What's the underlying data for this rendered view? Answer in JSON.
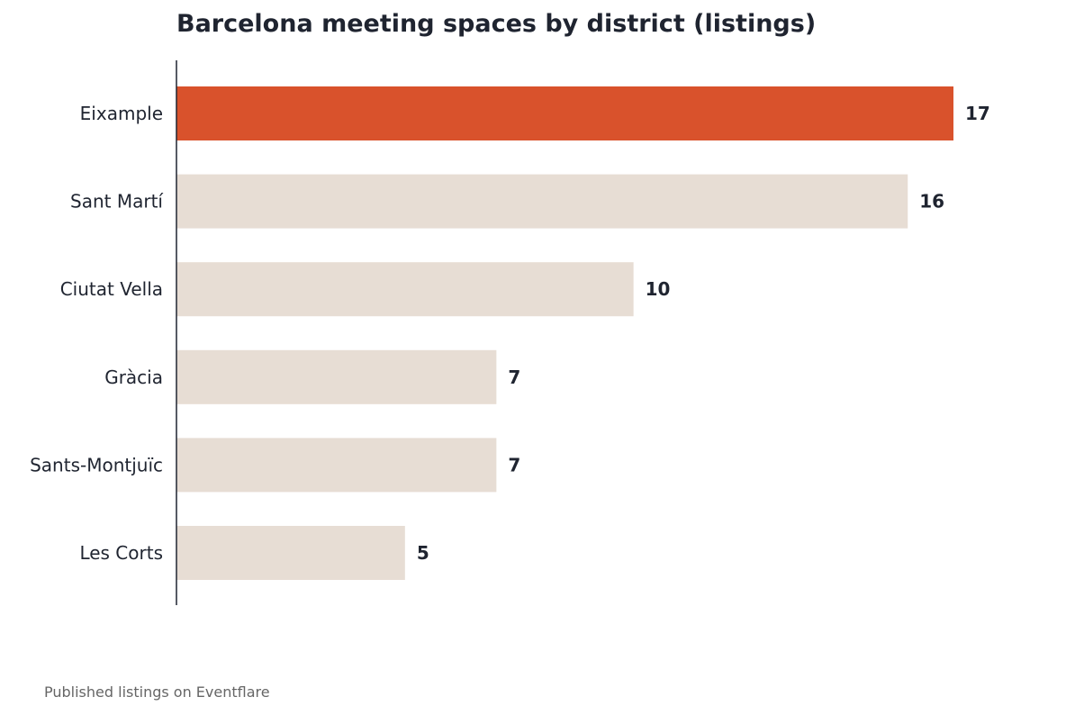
{
  "title": "Barcelona meeting spaces by district (listings)",
  "footnote": "Published listings on Eventflare",
  "colors": {
    "highlight": "#d9522c",
    "bar": "#e7ddd4",
    "axis": "#1f2430",
    "text": "#1f2430"
  },
  "chart_data": {
    "type": "bar",
    "orientation": "horizontal",
    "title": "Barcelona meeting spaces by district (listings)",
    "xlabel": "",
    "ylabel": "",
    "categories": [
      "Eixample",
      "Sant Martí",
      "Ciutat Vella",
      "Gràcia",
      "Sants-Montjuïc",
      "Les Corts"
    ],
    "values": [
      17,
      16,
      10,
      7,
      7,
      5
    ],
    "xlim": [
      0,
      17
    ],
    "highlighted_category": "Eixample",
    "data_labels": true,
    "grid": false,
    "legend": "none"
  }
}
